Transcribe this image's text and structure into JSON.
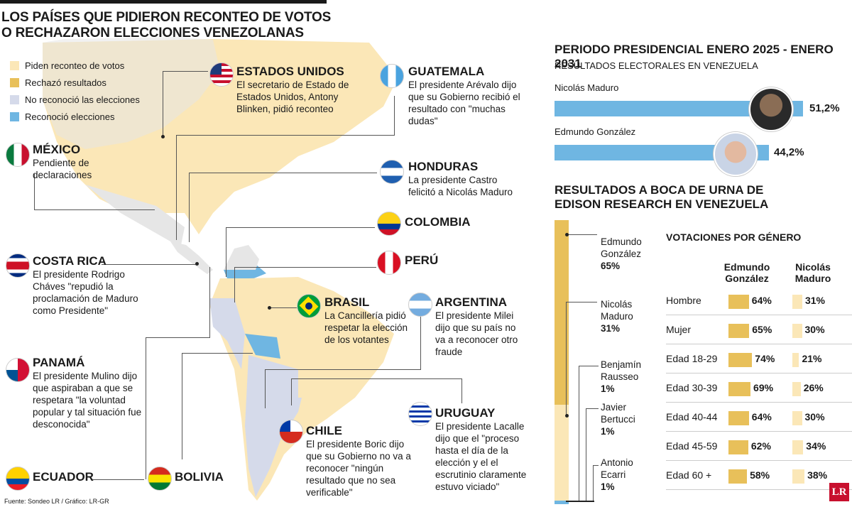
{
  "title_line1": "LOS PAÍSES QUE PIDIERON RECONTEO DE VOTOS",
  "title_line2": "O RECHAZARON ELECCIONES VENEZOLANAS",
  "legend": [
    {
      "label": "Piden reconteo de votos",
      "color": "#fbe7b7"
    },
    {
      "label": "Rechazó resultados",
      "color": "#e8c05a"
    },
    {
      "label": "No reconoció las elecciones",
      "color": "#d5daea"
    },
    {
      "label": "Reconoció elecciones",
      "color": "#6fb6e2"
    }
  ],
  "countries": {
    "usa": {
      "name": "ESTADOS UNIDOS",
      "desc": "El secretario de Estado de Estados Unidos, Antony Blinken, pidió reconteo"
    },
    "guatemala": {
      "name": "GUATEMALA",
      "desc": "El presidente Arévalo dijo que su Gobierno recibió el resultado con \"muchas dudas\""
    },
    "mexico": {
      "name": "MÉXICO",
      "desc": "Pendiente de declaraciones"
    },
    "honduras": {
      "name": "HONDURAS",
      "desc": "La presidente Castro felicitó a Nicolás Maduro"
    },
    "colombia": {
      "name": "COLOMBIA",
      "desc": ""
    },
    "costarica": {
      "name": "COSTA RICA",
      "desc": "El presidente Rodrigo Cháves \"repudió la proclamación de Maduro como Presidente\""
    },
    "peru": {
      "name": "PERÚ",
      "desc": ""
    },
    "brasil": {
      "name": "BRASIL",
      "desc": "La Cancillería pidió respetar la elección de los votantes"
    },
    "argentina": {
      "name": "ARGENTINA",
      "desc": "El presidente Milei dijo que su país no va a reconocer otro fraude"
    },
    "panama": {
      "name": "PANAMÁ",
      "desc": "El presidente Mulino dijo que aspiraban a que se respetara \"la voluntad popular y tal situación fue desconocida\""
    },
    "uruguay": {
      "name": "URUGUAY",
      "desc": "El presidente Lacalle dijo que el \"proceso hasta el día de la elección y el el escrutinio claramente estuvo viciado\""
    },
    "chile": {
      "name": "CHILE",
      "desc": "El presidente Boric dijo que su Gobierno no va a reconocer \"ningún resultado que no sea verificable\""
    },
    "ecuador": {
      "name": "ECUADOR",
      "desc": ""
    },
    "bolivia": {
      "name": "BOLIVIA",
      "desc": ""
    }
  },
  "footer": "Fuente: Sondeo LR / Gráfico: LR-GR",
  "results": {
    "title": "PERIODO PRESIDENCIAL ENERO 2025 - ENERO 2031",
    "subtitle": "RESULTADOS ELECTORALES EN VENEZUELA",
    "candidates": [
      {
        "name": "Nicolás Maduro",
        "pct": "51,2%",
        "value": 51.2
      },
      {
        "name": "Edmundo González",
        "pct": "44,2%",
        "value": 44.2
      }
    ]
  },
  "exit_poll": {
    "title_line1": "RESULTADOS A BOCA DE URNA DE",
    "title_line2": "EDISON RESEARCH EN VENEZUELA",
    "items": [
      {
        "name_line1": "Edmundo",
        "name_line2": "González",
        "pct": "65%",
        "value": 65
      },
      {
        "name_line1": "Nicolás",
        "name_line2": "Maduro",
        "pct": "31%",
        "value": 31
      },
      {
        "name_line1": "Benjamín",
        "name_line2": "Rausseo",
        "pct": "1%",
        "value": 1
      },
      {
        "name_line1": "Javier",
        "name_line2": "Bertucci",
        "pct": "1%",
        "value": 1
      },
      {
        "name_line1": "Antonio",
        "name_line2": "Ecarri",
        "pct": "1%",
        "value": 1
      }
    ]
  },
  "gender": {
    "title": "VOTACIONES POR GÉNERO",
    "col1_line1": "Edmundo",
    "col1_line2": "González",
    "col2_line1": "Nicolás",
    "col2_line2": "Maduro",
    "rows": [
      {
        "label": "Hombre",
        "e": "64%",
        "ev": 64,
        "n": "31%",
        "nv": 31
      },
      {
        "label": "Mujer",
        "e": "65%",
        "ev": 65,
        "n": "30%",
        "nv": 30
      },
      {
        "label": "Edad 18-29",
        "e": "74%",
        "ev": 74,
        "n": "21%",
        "nv": 21
      },
      {
        "label": "Edad 30-39",
        "e": "69%",
        "ev": 69,
        "n": "26%",
        "nv": 26
      },
      {
        "label": "Edad 40-44",
        "e": "64%",
        "ev": 64,
        "n": "30%",
        "nv": 30
      },
      {
        "label": "Edad 45-59",
        "e": "62%",
        "ev": 62,
        "n": "34%",
        "nv": 34
      },
      {
        "label": "Edad 60 +",
        "e": "58%",
        "ev": 58,
        "n": "38%",
        "nv": 38
      }
    ]
  },
  "logo": "LR"
}
